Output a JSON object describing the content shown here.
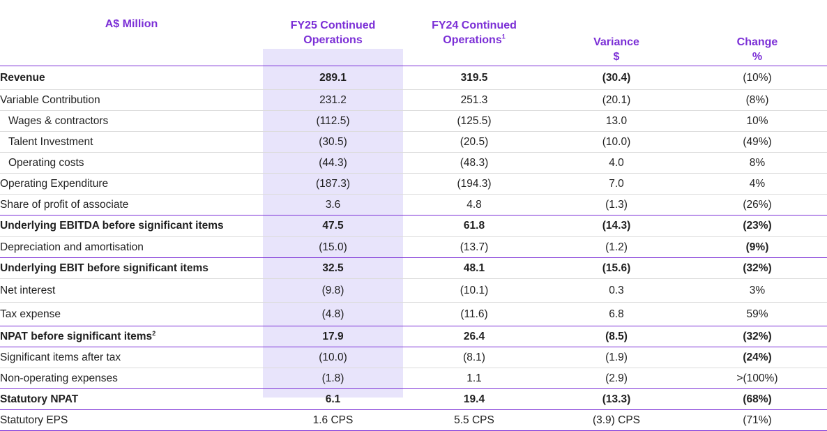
{
  "header": {
    "col0": "A$ Million",
    "col1_line1": "FY25 Continued",
    "col1_line2": "Operations",
    "col2_line1": "FY24 Continued",
    "col2_line2": "Operations",
    "col2_footnote": "1",
    "col3_line1": "Variance",
    "col3_line2": "$",
    "col4_line1": "Change",
    "col4_line2": "%"
  },
  "rows": [
    {
      "label": "Revenue",
      "fy25": "289.1",
      "fy24": "319.5",
      "variance": "(30.4)",
      "change": "(10%)"
    },
    {
      "label": "Variable Contribution",
      "fy25": "231.2",
      "fy24": "251.3",
      "variance": "(20.1)",
      "change": "(8%)"
    },
    {
      "label": "Wages & contractors",
      "fy25": "(112.5)",
      "fy24": "(125.5)",
      "variance": "13.0",
      "change": "10%"
    },
    {
      "label": "Talent Investment",
      "fy25": "(30.5)",
      "fy24": "(20.5)",
      "variance": "(10.0)",
      "change": "(49%)"
    },
    {
      "label": "Operating costs",
      "fy25": "(44.3)",
      "fy24": "(48.3)",
      "variance": "4.0",
      "change": "8%"
    },
    {
      "label": "Operating Expenditure",
      "fy25": "(187.3)",
      "fy24": "(194.3)",
      "variance": "7.0",
      "change": "4%"
    },
    {
      "label": "Share of profit of associate",
      "fy25": "3.6",
      "fy24": "4.8",
      "variance": "(1.3)",
      "change": "(26%)"
    },
    {
      "label": "Underlying EBITDA before significant items",
      "fy25": "47.5",
      "fy24": "61.8",
      "variance": "(14.3)",
      "change": "(23%)"
    },
    {
      "label": "Depreciation and amortisation",
      "fy25": "(15.0)",
      "fy24": "(13.7)",
      "variance": "(1.2)",
      "change": "(9%)"
    },
    {
      "label": "Underlying EBIT before significant items",
      "fy25": "32.5",
      "fy24": "48.1",
      "variance": "(15.6)",
      "change": "(32%)"
    },
    {
      "label": "Net interest",
      "fy25": "(9.8)",
      "fy24": "(10.1)",
      "variance": "0.3",
      "change": "3%"
    },
    {
      "label": "Tax expense",
      "fy25": "(4.8)",
      "fy24": "(11.6)",
      "variance": "6.8",
      "change": "59%"
    },
    {
      "label": "NPAT before significant items",
      "label_footnote": "2",
      "fy25": "17.9",
      "fy24": "26.4",
      "variance": "(8.5)",
      "change": "(32%)"
    },
    {
      "label": "Significant items after tax",
      "fy25": "(10.0)",
      "fy24": "(8.1)",
      "variance": "(1.9)",
      "change": "(24%)"
    },
    {
      "label": "Non-operating expenses",
      "fy25": "(1.8)",
      "fy24": "1.1",
      "variance": "(2.9)",
      "change": ">(100%)"
    },
    {
      "label": "Statutory NPAT",
      "fy25": "6.1",
      "fy24": "19.4",
      "variance": "(13.3)",
      "change": "(68%)"
    },
    {
      "label": "Statutory EPS",
      "fy25": "1.6 CPS",
      "fy24": "5.5 CPS",
      "variance": "(3.9) CPS",
      "change": "(71%)"
    }
  ],
  "colors": {
    "header_text": "#7b2fd6",
    "highlight_column": "#e8e4fb",
    "rule_lines": "#7b2fd6"
  }
}
